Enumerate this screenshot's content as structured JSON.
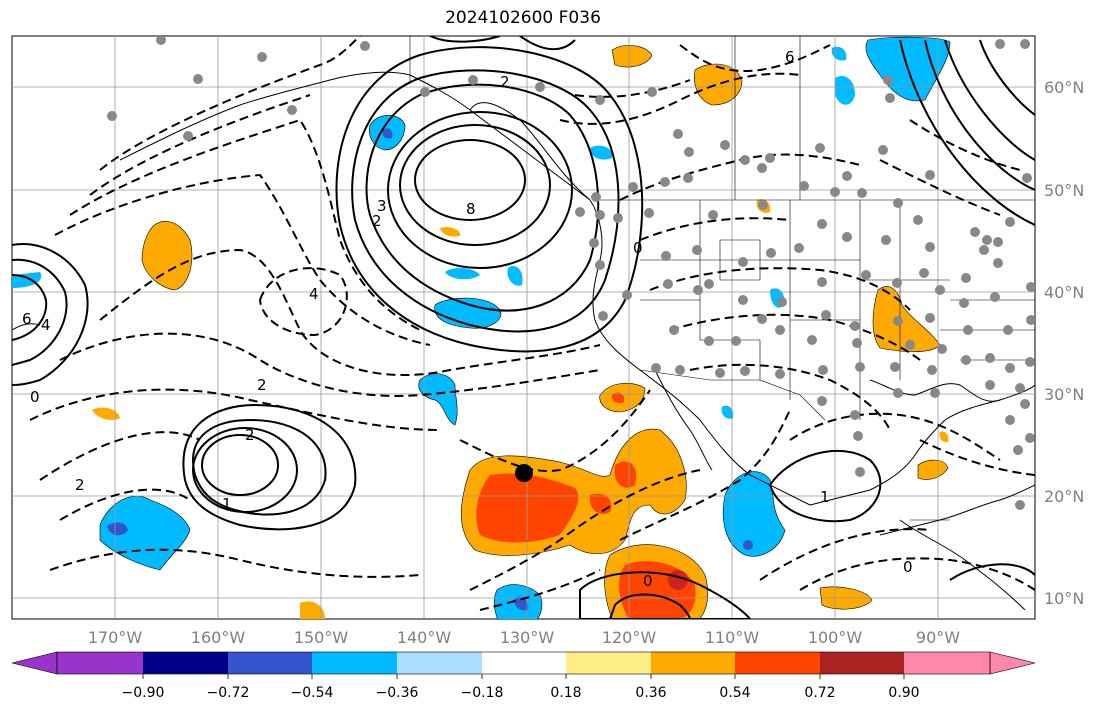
{
  "title": "2024102600 F036",
  "map": {
    "lat_labels": [
      "60°N",
      "50°N",
      "40°N",
      "30°N",
      "20°N",
      "10°N"
    ],
    "lon_labels": [
      "170°W",
      "160°W",
      "150°W",
      "140°W",
      "130°W",
      "120°W",
      "110°W",
      "100°W",
      "90°W"
    ]
  },
  "colorbar": {
    "ticks": [
      "−0.90",
      "−0.72",
      "−0.54",
      "−0.36",
      "−0.18",
      "0.18",
      "0.36",
      "0.54",
      "0.72",
      "0.90"
    ],
    "colors": [
      "#9933cc",
      "#000088",
      "#3355cc",
      "#00bbff",
      "#aaddff",
      "#ffffff",
      "#ffee88",
      "#ffaa00",
      "#ff4400",
      "#aa2222",
      "#ff88aa"
    ]
  },
  "contour_labels": [
    "2",
    "8",
    "3",
    "2",
    "0",
    "4",
    "2",
    "6",
    "1",
    "0",
    "2",
    "1",
    "2",
    "0",
    "6",
    "4",
    "0"
  ],
  "colors": {
    "orange": "#ffaa00",
    "red": "#ff4400",
    "darkred": "#cc2222",
    "cyan": "#00bbff",
    "blue": "#3355cc",
    "purple": "#9933cc",
    "station": "#888888"
  }
}
